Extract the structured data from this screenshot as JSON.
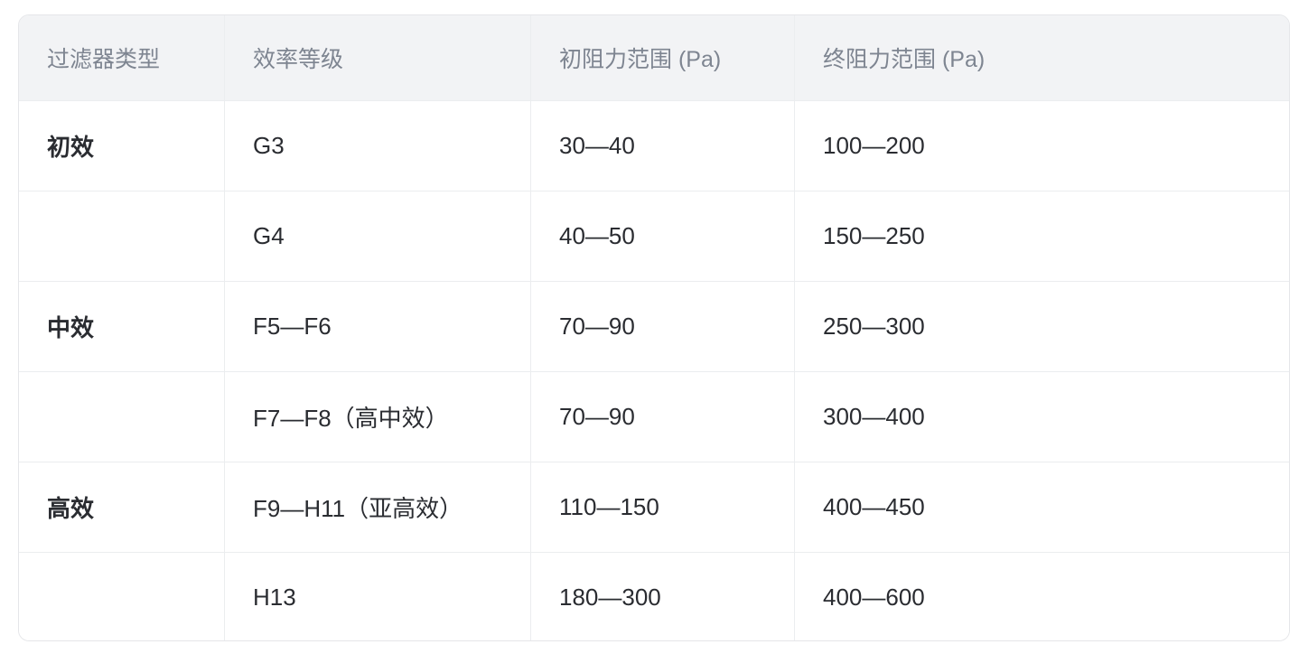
{
  "table": {
    "header": {
      "filter_type": "过滤器类型",
      "efficiency_grade": "效率等级",
      "initial_resistance": "初阻力范围 (Pa)",
      "final_resistance": "终阻力范围 (Pa)"
    },
    "rows": [
      {
        "type": "初效",
        "grade": "G3",
        "initial": "30—40",
        "final": "100—200"
      },
      {
        "type": "",
        "grade": "G4",
        "initial": "40—50",
        "final": "150—250"
      },
      {
        "type": "中效",
        "grade": "F5—F6",
        "initial": "70—90",
        "final": "250—300"
      },
      {
        "type": "",
        "grade": "F7—F8（高中效）",
        "initial": "70—90",
        "final": "300—400"
      },
      {
        "type": "高效",
        "grade": "F9—H11（亚高效）",
        "initial": "110—150",
        "final": "400—450"
      },
      {
        "type": "",
        "grade": "H13",
        "initial": "180—300",
        "final": "400—600"
      }
    ],
    "colors": {
      "header_bg": "#f2f3f5",
      "header_text": "#7e8591",
      "body_text": "#2a2c31",
      "divider": "#ebedef",
      "outer_border": "#e5e6e9",
      "page_bg": "#ffffff"
    }
  }
}
